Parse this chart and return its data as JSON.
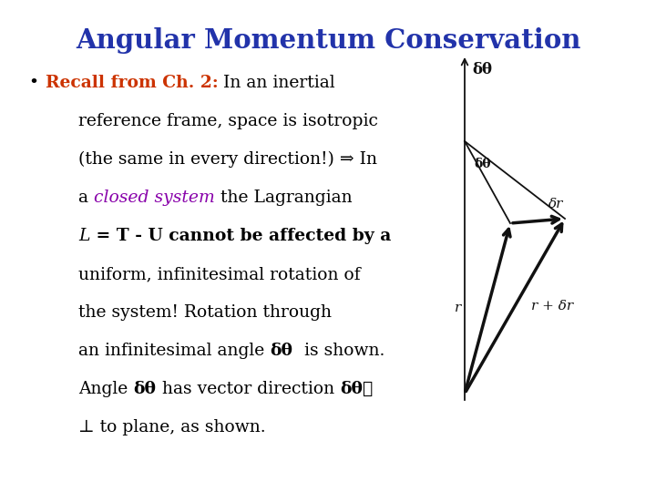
{
  "title": "Angular Momentum Conservation",
  "title_color": "#2233AA",
  "title_fontsize": 21,
  "bg_color": "#FFFFFF",
  "body_fontsize": 13.5,
  "bullet_color": "#000000",
  "recall_color": "#CC3300",
  "closed_color": "#8800AA",
  "body_color": "#000000",
  "bold_color": "#000000",
  "diagram_color": "#111111",
  "lines": [
    {
      "parts": [
        {
          "t": "• ",
          "c": "#000000",
          "b": false,
          "i": false
        },
        {
          "t": "Recall from Ch. 2:",
          "c": "#CC3300",
          "b": true,
          "i": false
        },
        {
          "t": " In an inertial",
          "c": "#000000",
          "b": false,
          "i": false
        }
      ],
      "indent": 0.045
    },
    {
      "parts": [
        {
          "t": "reference frame, space is isotropic",
          "c": "#000000",
          "b": false,
          "i": false
        }
      ],
      "indent": 0.12
    },
    {
      "parts": [
        {
          "t": "(the same in every direction!) ⇒ In",
          "c": "#000000",
          "b": false,
          "i": false
        }
      ],
      "indent": 0.12
    },
    {
      "parts": [
        {
          "t": "a ",
          "c": "#000000",
          "b": false,
          "i": false
        },
        {
          "t": "closed system",
          "c": "#8800AA",
          "b": false,
          "i": true
        },
        {
          "t": " the Lagrangian",
          "c": "#000000",
          "b": false,
          "i": false
        }
      ],
      "indent": 0.12
    },
    {
      "parts": [
        {
          "t": "L",
          "c": "#000000",
          "b": false,
          "i": true
        },
        {
          "t": " = T - U cannot be affected by a",
          "c": "#000000",
          "b": true,
          "i": false
        }
      ],
      "indent": 0.12
    },
    {
      "parts": [
        {
          "t": "uniform, infinitesimal rotation of",
          "c": "#000000",
          "b": false,
          "i": false
        }
      ],
      "indent": 0.12
    },
    {
      "parts": [
        {
          "t": "the system! Rotation through",
          "c": "#000000",
          "b": false,
          "i": false
        }
      ],
      "indent": 0.12
    },
    {
      "parts": [
        {
          "t": "an infinitesimal angle ",
          "c": "#000000",
          "b": false,
          "i": false
        },
        {
          "t": "δθ",
          "c": "#000000",
          "b": true,
          "i": false
        },
        {
          "t": "  is shown.",
          "c": "#000000",
          "b": false,
          "i": false
        }
      ],
      "indent": 0.12
    },
    {
      "parts": [
        {
          "t": "Angle ",
          "c": "#000000",
          "b": false,
          "i": false
        },
        {
          "t": "δθ",
          "c": "#000000",
          "b": true,
          "i": false
        },
        {
          "t": " has vector direction ",
          "c": "#000000",
          "b": false,
          "i": false
        },
        {
          "t": "δθ⃗",
          "c": "#000000",
          "b": true,
          "i": false
        }
      ],
      "indent": 0.12
    },
    {
      "parts": [
        {
          "t": "⊥ to plane, as shown.",
          "c": "#000000",
          "b": false,
          "i": false
        }
      ],
      "indent": 0.12
    }
  ]
}
